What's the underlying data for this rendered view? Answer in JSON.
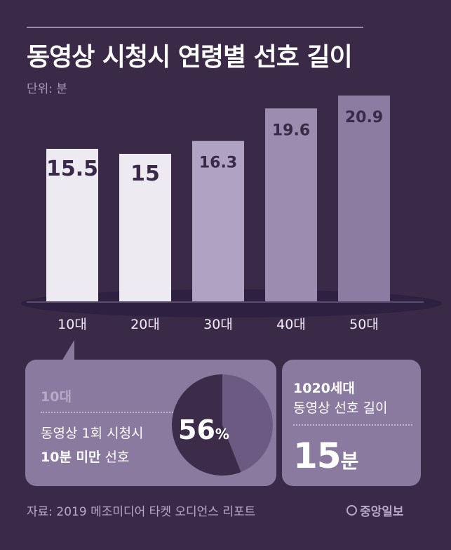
{
  "title": "동영상 시청시 연령별 선호 길이",
  "unit": "단위: 분",
  "chart_data": {
    "type": "bar",
    "categories": [
      "10대",
      "20대",
      "30대",
      "40대",
      "50대"
    ],
    "values": [
      15.5,
      15,
      16.3,
      19.6,
      20.9
    ],
    "value_labels": [
      "15.5",
      "15",
      "16.3",
      "19.6",
      "20.9"
    ],
    "ylim": [
      0,
      21
    ],
    "colors": [
      "#eeeaf2",
      "#eeeaf2",
      "#b0a2c2",
      "#9c8cb0",
      "#8c7ca2"
    ]
  },
  "callout": {
    "age": "10대",
    "line1": "동영상 1회 시청시",
    "line2_bold": "10분 미만",
    "line2_rest": " 선호",
    "percent": "56",
    "percent_sign": "%",
    "percent_value": 56
  },
  "summary": {
    "generation": "1020세대",
    "description": "동영상 선호 길이",
    "value": "15",
    "unit": "분"
  },
  "source": "자료: 2019 메조미디어 타켓 오디언스 리포트",
  "logo": "중앙일보",
  "colors": {
    "background": "#3a2a48",
    "panel": "#8a7aa0",
    "pie_main": "#3c2c4a",
    "pie_rest": "#6c5a82"
  }
}
